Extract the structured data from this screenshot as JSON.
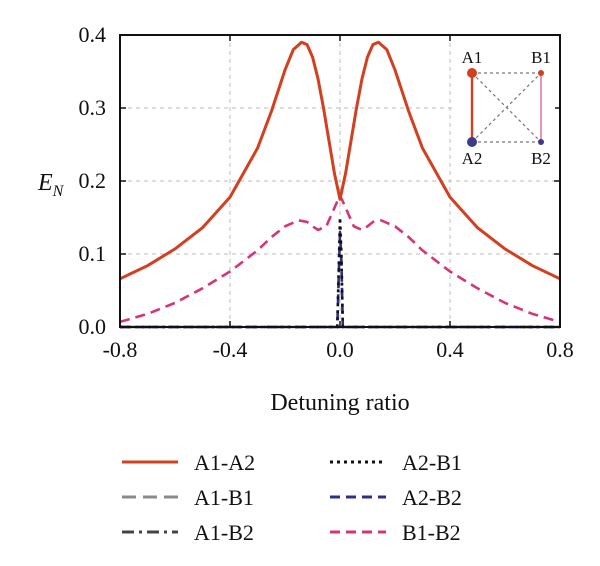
{
  "chart_data": {
    "type": "line",
    "title": "",
    "xlabel": "Detuning ratio",
    "ylabel_main": "E",
    "ylabel_sub": "N",
    "xlim": [
      -0.8,
      0.8
    ],
    "ylim": [
      0.0,
      0.4
    ],
    "xticks": [
      -0.8,
      -0.4,
      0.0,
      0.4,
      0.8
    ],
    "xtick_labels": [
      "-0.8",
      "-0.4",
      "0.0",
      "0.4",
      "0.8"
    ],
    "yticks": [
      0.0,
      0.1,
      0.2,
      0.3,
      0.4
    ],
    "ytick_labels": [
      "0.0",
      "0.1",
      "0.2",
      "0.3",
      "0.4"
    ],
    "grid": true,
    "legend_position": "bottom",
    "series": [
      {
        "name": "A1-A2",
        "color": "#d2401f",
        "dash": "solid",
        "x": [
          -0.8,
          -0.7,
          -0.6,
          -0.5,
          -0.4,
          -0.3,
          -0.25,
          -0.2,
          -0.17,
          -0.14,
          -0.12,
          -0.1,
          -0.08,
          -0.06,
          -0.04,
          -0.02,
          0.0,
          0.02,
          0.04,
          0.06,
          0.08,
          0.1,
          0.12,
          0.14,
          0.17,
          0.2,
          0.25,
          0.3,
          0.4,
          0.5,
          0.6,
          0.7,
          0.8
        ],
        "y": [
          0.066,
          0.084,
          0.107,
          0.136,
          0.178,
          0.245,
          0.295,
          0.352,
          0.38,
          0.39,
          0.387,
          0.37,
          0.34,
          0.3,
          0.255,
          0.21,
          0.175,
          0.21,
          0.255,
          0.3,
          0.34,
          0.37,
          0.387,
          0.39,
          0.38,
          0.352,
          0.295,
          0.245,
          0.178,
          0.136,
          0.107,
          0.084,
          0.066
        ]
      },
      {
        "name": "A1-B1",
        "color": "#8a8a8a",
        "dash": "long-dash",
        "x": [
          -0.8,
          0.8
        ],
        "y": [
          0.0,
          0.0
        ]
      },
      {
        "name": "A1-B2",
        "color": "#444444",
        "dash": "dash-dot",
        "x": [
          -0.8,
          0.8
        ],
        "y": [
          0.0,
          0.0
        ]
      },
      {
        "name": "A2-B1",
        "color": "#111111",
        "dash": "dotted",
        "x": [
          -0.8,
          -0.02,
          -0.01,
          0.0,
          0.005,
          0.01,
          0.02,
          0.8
        ],
        "y": [
          0.0,
          0.0,
          0.0,
          0.15,
          0.1,
          0.0,
          0.0,
          0.0
        ]
      },
      {
        "name": "A2-B2",
        "color": "#2c2f8a",
        "dash": "dash",
        "x": [
          -0.8,
          -0.02,
          -0.01,
          0.0,
          0.005,
          0.01,
          0.02,
          0.8
        ],
        "y": [
          0.0,
          0.0,
          0.0,
          0.13,
          0.09,
          0.0,
          0.0,
          0.0
        ]
      },
      {
        "name": "B1-B2",
        "color": "#d6347a",
        "dash": "dash",
        "x": [
          -0.8,
          -0.7,
          -0.6,
          -0.5,
          -0.4,
          -0.3,
          -0.25,
          -0.2,
          -0.15,
          -0.12,
          -0.1,
          -0.08,
          -0.05,
          -0.03,
          -0.01,
          0.0,
          0.01,
          0.03,
          0.05,
          0.08,
          0.1,
          0.12,
          0.15,
          0.2,
          0.25,
          0.3,
          0.4,
          0.5,
          0.6,
          0.7,
          0.8
        ],
        "y": [
          0.007,
          0.018,
          0.033,
          0.053,
          0.076,
          0.105,
          0.123,
          0.138,
          0.146,
          0.144,
          0.138,
          0.133,
          0.138,
          0.155,
          0.172,
          0.18,
          0.172,
          0.155,
          0.138,
          0.133,
          0.138,
          0.144,
          0.146,
          0.138,
          0.123,
          0.105,
          0.076,
          0.053,
          0.033,
          0.018,
          0.007
        ]
      }
    ]
  },
  "inset": {
    "nodes": [
      {
        "label": "A1",
        "color": "#d2401f",
        "size": "large"
      },
      {
        "label": "B1",
        "color": "#d2401f",
        "size": "small"
      },
      {
        "label": "A2",
        "color": "#3b3a8c",
        "size": "large"
      },
      {
        "label": "B2",
        "color": "#3b3a8c",
        "size": "small"
      }
    ],
    "edge_colors": {
      "A1-A2": "#d2401f",
      "B1-B2": "#e58aa8",
      "other": "#777777"
    }
  }
}
